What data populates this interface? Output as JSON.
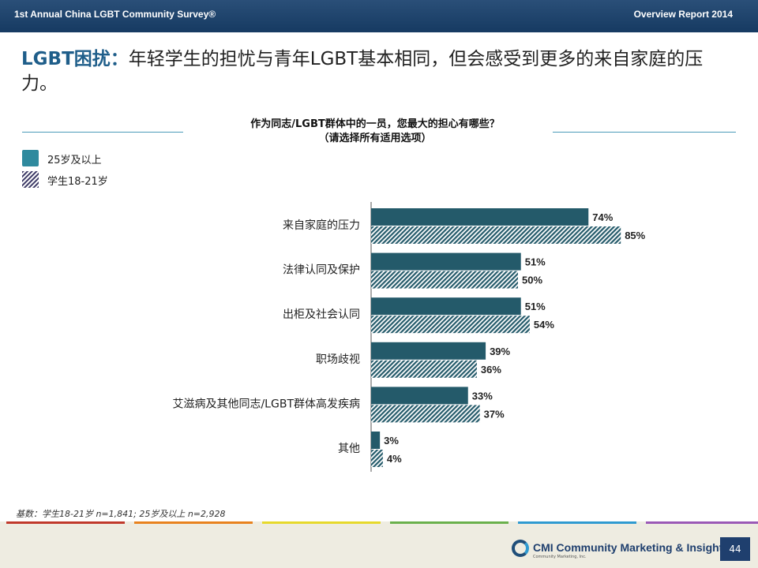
{
  "header": {
    "left_title": "1st Annual China LGBT Community Survey®",
    "right_title": "Overview Report 2014"
  },
  "headline": {
    "prefix": "LGBT困扰：",
    "text": "年轻学生的担忧与青年LGBT基本相同，但会感受到更多的来自家庭的压力。"
  },
  "chart_data": {
    "type": "bar",
    "orientation": "horizontal",
    "title": "作为同志/LGBT群体中的一员，您最大的担心有哪些？",
    "subtitle": "（请选择所有适用选项）",
    "categories": [
      "来自家庭的压力",
      "法律认同及保护",
      "出柜及社会认同",
      "职场歧视",
      "艾滋病及其他同志/LGBT群体高发疾病",
      "其他"
    ],
    "series": [
      {
        "name": "25岁及以上",
        "values": [
          74,
          51,
          51,
          39,
          33,
          3
        ],
        "color": "#245a6a",
        "pattern": "solid"
      },
      {
        "name": "学生18-21岁",
        "values": [
          85,
          50,
          54,
          36,
          37,
          4
        ],
        "color": "#245a6a",
        "pattern": "hatched"
      }
    ],
    "value_suffix": "%",
    "xlim": [
      0,
      100
    ],
    "legend_position": "top-left"
  },
  "legend": [
    {
      "label": "25岁及以上"
    },
    {
      "label": "学生18-21岁"
    }
  ],
  "footnote": "基数：学生18-21岁 n=1,841; 25岁及以上 n=2,928",
  "footer": {
    "logo_text": "CMI Community Marketing & Insights",
    "logo_sub": "Community Marketing, Inc.",
    "page_number": "44",
    "stripe_colors": [
      "#c0392b",
      "#e8821e",
      "#e6d92c",
      "#6ab04c",
      "#2f9ad0",
      "#9b59b6"
    ]
  }
}
